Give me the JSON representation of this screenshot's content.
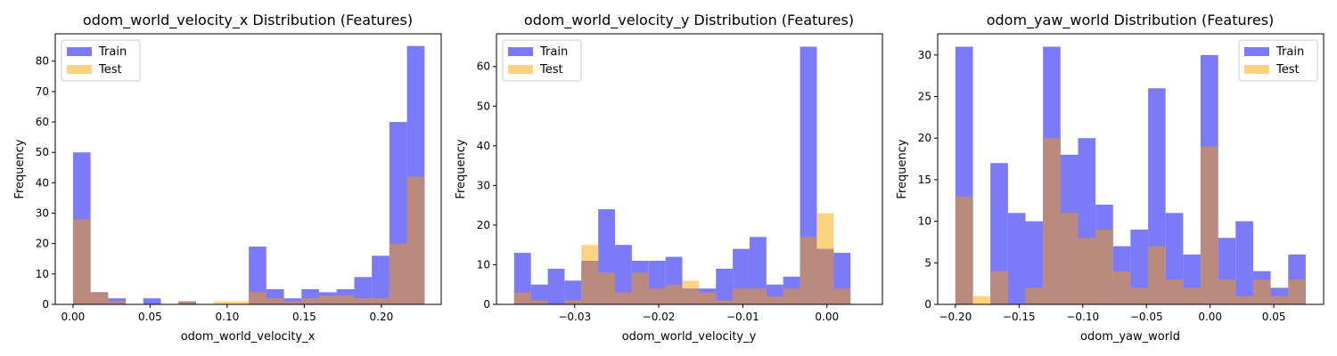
{
  "colors": {
    "train": "#7b7bfa",
    "test": "#ffd382",
    "overlap": "#ba8a7e"
  },
  "legend": {
    "train_label": "Train",
    "test_label": "Test"
  },
  "chart_data": [
    {
      "type": "histogram",
      "title": "odom_world_velocity_x Distribution (Features)",
      "xlabel": "odom_world_velocity_x",
      "ylabel": "Frequency",
      "xlim": [
        -0.0115,
        0.2388
      ],
      "ylim": [
        0,
        89
      ],
      "xticks": [
        0.0,
        0.05,
        0.1,
        0.15,
        0.2
      ],
      "xtick_labels": [
        "0.00",
        "0.05",
        "0.10",
        "0.15",
        "0.20"
      ],
      "yticks": [
        0,
        10,
        20,
        30,
        40,
        50,
        60,
        70,
        80
      ],
      "yticks_labels": [
        "0",
        "10",
        "20",
        "30",
        "40",
        "50",
        "60",
        "70",
        "80"
      ],
      "legend_loc": "upper-left",
      "series": [
        {
          "name": "Train",
          "bin_edges": [
            0.0,
            0.0114,
            0.0228,
            0.0342,
            0.0456,
            0.057,
            0.0684,
            0.0798,
            0.0912,
            0.1026,
            0.114,
            0.1254,
            0.1368,
            0.1482,
            0.1596,
            0.171,
            0.1824,
            0.1938,
            0.2052,
            0.2166,
            0.228
          ],
          "counts": [
            50,
            4,
            2,
            0,
            2,
            0,
            1,
            0,
            0,
            0,
            19,
            5,
            2,
            5,
            4,
            5,
            9,
            16,
            60,
            85
          ]
        },
        {
          "name": "Test",
          "bin_edges": [
            0.0,
            0.0114,
            0.0228,
            0.0342,
            0.0456,
            0.057,
            0.0684,
            0.0798,
            0.0912,
            0.1026,
            0.114,
            0.1254,
            0.1368,
            0.1482,
            0.1596,
            0.171,
            0.1824,
            0.1938,
            0.2052,
            0.2166,
            0.228
          ],
          "counts": [
            28,
            4,
            1,
            0,
            0,
            0,
            1,
            0,
            1,
            1,
            4,
            2,
            1,
            2,
            3,
            3,
            2,
            2,
            20,
            42
          ]
        }
      ]
    },
    {
      "type": "histogram",
      "title": "odom_world_velocity_y Distribution (Features)",
      "xlabel": "odom_world_velocity_y",
      "ylabel": "Frequency",
      "xlim": [
        -0.0393,
        0.0066
      ],
      "ylim": [
        0,
        68.25
      ],
      "xticks": [
        -0.03,
        -0.02,
        -0.01,
        0.0
      ],
      "xtick_labels": [
        "−0.03",
        "−0.02",
        "−0.01",
        "0.00"
      ],
      "yticks": [
        0,
        10,
        20,
        30,
        40,
        50,
        60
      ],
      "yticks_labels": [
        "0",
        "10",
        "20",
        "30",
        "40",
        "50",
        "60"
      ],
      "legend_loc": "upper-left",
      "series": [
        {
          "name": "Train",
          "bin_edges": [
            -0.0372,
            -0.0352,
            -0.0332,
            -0.0312,
            -0.0292,
            -0.0272,
            -0.0252,
            -0.0232,
            -0.0212,
            -0.0192,
            -0.0172,
            -0.0152,
            -0.0132,
            -0.0112,
            -0.0092,
            -0.0072,
            -0.0052,
            -0.0032,
            -0.0012,
            0.0008,
            0.0028,
            0.0048
          ],
          "counts": [
            13,
            5,
            9,
            6,
            11,
            24,
            15,
            11,
            11,
            12,
            4,
            4,
            9,
            14,
            17,
            5,
            7,
            65,
            14,
            13,
            0
          ]
        },
        {
          "name": "Test",
          "bin_edges": [
            -0.0372,
            -0.0352,
            -0.0332,
            -0.0312,
            -0.0292,
            -0.0272,
            -0.0252,
            -0.0232,
            -0.0212,
            -0.0192,
            -0.0172,
            -0.0152,
            -0.0132,
            -0.0112,
            -0.0092,
            -0.0072,
            -0.0052,
            -0.0032,
            -0.0012,
            0.0008,
            0.0028,
            0.0048
          ],
          "counts": [
            3,
            1,
            0,
            1,
            15,
            8,
            3,
            8,
            4,
            5,
            6,
            3,
            1,
            4,
            4,
            2,
            4,
            17,
            23,
            4,
            0
          ]
        }
      ]
    },
    {
      "type": "histogram",
      "title": "odom_yaw_world Distribution (Features)",
      "xlabel": "odom_yaw_world",
      "ylabel": "Frequency",
      "xlim": [
        -0.2139,
        0.0891
      ],
      "ylim": [
        0,
        32.55
      ],
      "xticks": [
        -0.2,
        -0.15,
        -0.1,
        -0.05,
        0.0,
        0.05
      ],
      "xtick_labels": [
        "−0.20",
        "−0.15",
        "−0.10",
        "−0.05",
        "0.00",
        "0.05"
      ],
      "yticks": [
        0,
        5,
        10,
        15,
        20,
        25,
        30
      ],
      "yticks_labels": [
        "0",
        "5",
        "10",
        "15",
        "20",
        "25",
        "30"
      ],
      "legend_loc": "upper-right",
      "series": [
        {
          "name": "Train",
          "bin_edges": [
            -0.2,
            -0.1862,
            -0.1725,
            -0.1587,
            -0.145,
            -0.1312,
            -0.1175,
            -0.1037,
            -0.09,
            -0.0762,
            -0.0625,
            -0.0487,
            -0.035,
            -0.0212,
            -0.0075,
            0.0063,
            0.02,
            0.0338,
            0.0475,
            0.0613,
            0.075
          ],
          "counts": [
            31,
            0,
            17,
            11,
            10,
            31,
            18,
            20,
            12,
            7,
            9,
            26,
            11,
            6,
            30,
            8,
            10,
            4,
            2,
            6
          ]
        },
        {
          "name": "Test",
          "bin_edges": [
            -0.2,
            -0.1862,
            -0.1725,
            -0.1587,
            -0.145,
            -0.1312,
            -0.1175,
            -0.1037,
            -0.09,
            -0.0762,
            -0.0625,
            -0.0487,
            -0.035,
            -0.0212,
            -0.0075,
            0.0063,
            0.02,
            0.0338,
            0.0475,
            0.0613,
            0.075
          ],
          "counts": [
            13,
            1,
            4,
            0,
            2,
            20,
            11,
            8,
            9,
            4,
            2,
            7,
            3,
            2,
            19,
            3,
            1,
            3,
            1,
            3
          ]
        }
      ]
    }
  ]
}
